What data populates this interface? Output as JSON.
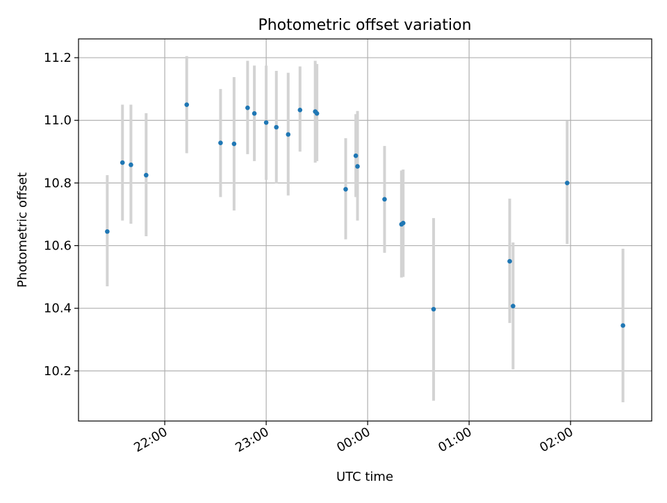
{
  "chart_data": {
    "type": "scatter",
    "title": "Photometric offset variation",
    "xlabel": "UTC time",
    "ylabel": "Photometric offset",
    "x_ticks": [
      "22:00",
      "23:00",
      "00:00",
      "01:00",
      "02:00"
    ],
    "y_ticks": [
      "10.2",
      "10.4",
      "10.6",
      "10.8",
      "11.0",
      "11.2"
    ],
    "xlim": [
      "21:09",
      "02:48"
    ],
    "ylim": [
      10.04,
      11.26
    ],
    "grid": true,
    "point_color": "#1f77b4",
    "errorbar_color": "#d3d3d3",
    "points": [
      {
        "x": "21:26",
        "y": 10.645,
        "err_low": 10.47,
        "err_high": 10.825
      },
      {
        "x": "21:35",
        "y": 10.865,
        "err_low": 10.68,
        "err_high": 11.05
      },
      {
        "x": "21:40",
        "y": 10.858,
        "err_low": 10.67,
        "err_high": 11.05
      },
      {
        "x": "21:49",
        "y": 10.825,
        "err_low": 10.63,
        "err_high": 11.023
      },
      {
        "x": "22:13",
        "y": 11.05,
        "err_low": 10.895,
        "err_high": 11.205
      },
      {
        "x": "22:33",
        "y": 10.928,
        "err_low": 10.755,
        "err_high": 11.1
      },
      {
        "x": "22:41",
        "y": 10.925,
        "err_low": 10.712,
        "err_high": 11.138
      },
      {
        "x": "22:49",
        "y": 11.04,
        "err_low": 10.892,
        "err_high": 11.19
      },
      {
        "x": "22:53",
        "y": 11.022,
        "err_low": 10.87,
        "err_high": 11.175
      },
      {
        "x": "23:00",
        "y": 10.993,
        "err_low": 10.81,
        "err_high": 11.175
      },
      {
        "x": "23:06",
        "y": 10.978,
        "err_low": 10.798,
        "err_high": 11.158
      },
      {
        "x": "23:13",
        "y": 10.955,
        "err_low": 10.76,
        "err_high": 11.152
      },
      {
        "x": "23:20",
        "y": 11.033,
        "err_low": 10.9,
        "err_high": 11.172
      },
      {
        "x": "23:29",
        "y": 11.028,
        "err_low": 10.865,
        "err_high": 11.19
      },
      {
        "x": "23:30",
        "y": 11.022,
        "err_low": 10.87,
        "err_high": 11.18
      },
      {
        "x": "23:47",
        "y": 10.78,
        "err_low": 10.62,
        "err_high": 10.943
      },
      {
        "x": "23:53",
        "y": 10.887,
        "err_low": 10.755,
        "err_high": 11.02
      },
      {
        "x": "23:54",
        "y": 10.853,
        "err_low": 10.68,
        "err_high": 11.03
      },
      {
        "x": "00:10",
        "y": 10.748,
        "err_low": 10.577,
        "err_high": 10.918
      },
      {
        "x": "00:20",
        "y": 10.668,
        "err_low": 10.498,
        "err_high": 10.84
      },
      {
        "x": "00:21",
        "y": 10.672,
        "err_low": 10.5,
        "err_high": 10.843
      },
      {
        "x": "00:39",
        "y": 10.397,
        "err_low": 10.105,
        "err_high": 10.688
      },
      {
        "x": "01:24",
        "y": 10.55,
        "err_low": 10.353,
        "err_high": 10.75
      },
      {
        "x": "01:26",
        "y": 10.407,
        "err_low": 10.205,
        "err_high": 10.61
      },
      {
        "x": "01:58",
        "y": 10.8,
        "err_low": 10.605,
        "err_high": 10.998
      },
      {
        "x": "02:31",
        "y": 10.345,
        "err_low": 10.1,
        "err_high": 10.59
      }
    ]
  }
}
